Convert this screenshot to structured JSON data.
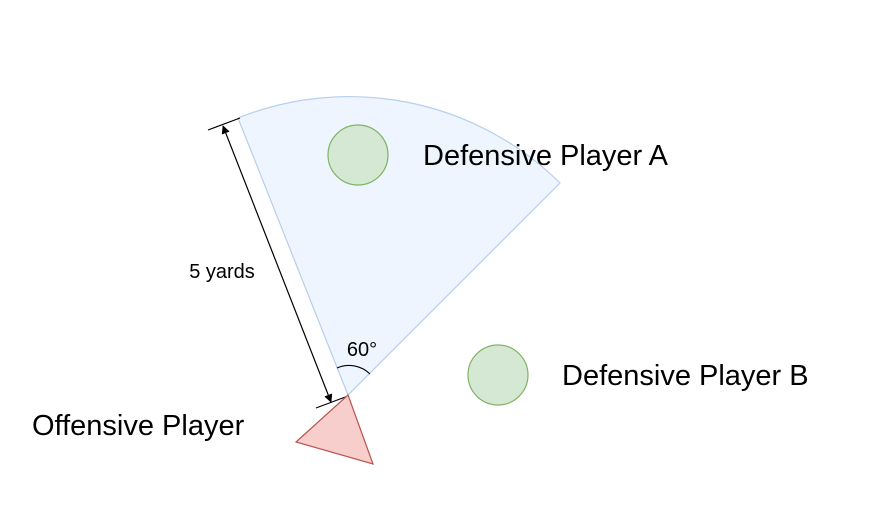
{
  "diagram": {
    "labels": {
      "defensive_a": "Defensive Player A",
      "defensive_b": "Defensive Player B",
      "offensive": "Offensive Player",
      "distance": "5 yards",
      "angle": "60°"
    },
    "colors": {
      "cone_fill": "#eef5fe",
      "cone_stroke": "#b6cfec",
      "defender_fill": "#d5e8d4",
      "defender_stroke": "#82b366",
      "offense_fill": "#f8cecc",
      "offense_stroke": "#b85450",
      "line": "#000000"
    }
  }
}
